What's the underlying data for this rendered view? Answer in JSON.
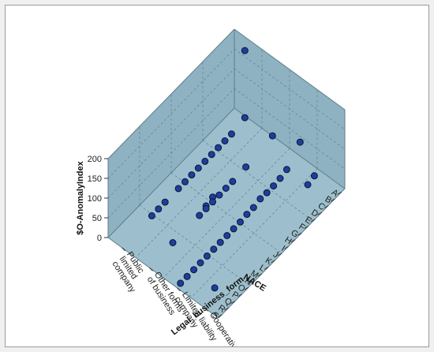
{
  "chart_data": {
    "type": "scatter",
    "title": "",
    "ylabel": "$O-AnomalyIndex",
    "xlabel": "NACE",
    "zlabel": "Legal_business_form",
    "ylim": [
      0,
      200
    ],
    "yticks": [
      "0",
      "50",
      "100",
      "150",
      "200"
    ],
    "x_categories": [
      "A",
      "B",
      "C",
      "D",
      "E",
      "F",
      "G",
      "H",
      "I",
      "J",
      "K",
      "L",
      "M",
      "N",
      "O",
      "P",
      "Q",
      "R",
      "S"
    ],
    "z_categories": [
      "Public limited company",
      "Other forms of business",
      "Limited liability company",
      "Cooperative"
    ],
    "z_tick_lines": [
      [
        "Public",
        "limited",
        "company"
      ],
      [
        "Other forms",
        "of business"
      ],
      [
        "Limited liability",
        "company"
      ],
      [
        "Cooperative"
      ]
    ],
    "points": [
      {
        "x": "A",
        "z": 0,
        "y": 180
      },
      {
        "x": "A",
        "z": 0,
        "y": 10
      },
      {
        "x": "C",
        "z": 0,
        "y": 3
      },
      {
        "x": "D",
        "z": 0,
        "y": 3
      },
      {
        "x": "E",
        "z": 0,
        "y": 3
      },
      {
        "x": "F",
        "z": 0,
        "y": 3
      },
      {
        "x": "G",
        "z": 0,
        "y": 3
      },
      {
        "x": "H",
        "z": 0,
        "y": 3
      },
      {
        "x": "I",
        "z": 0,
        "y": 3
      },
      {
        "x": "J",
        "z": 0,
        "y": 3
      },
      {
        "x": "K",
        "z": 0,
        "y": 3
      },
      {
        "x": "M",
        "z": 0,
        "y": 3
      },
      {
        "x": "N",
        "z": 0,
        "y": 3
      },
      {
        "x": "O",
        "z": 0,
        "y": 3
      },
      {
        "x": "J",
        "z": 1,
        "y": 15
      },
      {
        "x": "K",
        "z": 1,
        "y": 10
      },
      {
        "x": "A",
        "z": 1,
        "y": 15
      },
      {
        "x": "E",
        "z": 1,
        "y": 5
      },
      {
        "x": "G",
        "z": 1,
        "y": 3
      },
      {
        "x": "H",
        "z": 1,
        "y": 3
      },
      {
        "x": "I",
        "z": 1,
        "y": 3
      },
      {
        "x": "J",
        "z": 1,
        "y": 3
      },
      {
        "x": "K",
        "z": 1,
        "y": 3
      },
      {
        "x": "L",
        "z": 1,
        "y": 3
      },
      {
        "x": "P",
        "z": 1,
        "y": 3
      },
      {
        "x": "A",
        "z": 2,
        "y": 50
      },
      {
        "x": "C",
        "z": 2,
        "y": 15
      },
      {
        "x": "D",
        "z": 2,
        "y": 10
      },
      {
        "x": "E",
        "z": 2,
        "y": 8
      },
      {
        "x": "F",
        "z": 2,
        "y": 8
      },
      {
        "x": "G",
        "z": 2,
        "y": 10
      },
      {
        "x": "H",
        "z": 2,
        "y": 5
      },
      {
        "x": "I",
        "z": 2,
        "y": 5
      },
      {
        "x": "J",
        "z": 2,
        "y": 3
      },
      {
        "x": "K",
        "z": 2,
        "y": 3
      },
      {
        "x": "L",
        "z": 2,
        "y": 3
      },
      {
        "x": "M",
        "z": 2,
        "y": 3
      },
      {
        "x": "N",
        "z": 2,
        "y": 3
      },
      {
        "x": "O",
        "z": 2,
        "y": 3
      },
      {
        "x": "P",
        "z": 2,
        "y": 3
      },
      {
        "x": "Q",
        "z": 2,
        "y": 3
      },
      {
        "x": "R",
        "z": 2,
        "y": 3
      },
      {
        "x": "S",
        "z": 2,
        "y": 3
      },
      {
        "x": "C",
        "z": 3,
        "y": 50
      },
      {
        "x": "D",
        "z": 3,
        "y": 45
      },
      {
        "x": "R",
        "z": 3,
        "y": 25
      }
    ],
    "grid": true,
    "colors": {
      "wall": "#8fb2c2",
      "floor": "#9dbfcd",
      "frame_line": "#5d7c8a",
      "grid_line": "#5f7e8c",
      "point_fill": "#1f3d9a",
      "point_stroke": "#0b153c"
    }
  }
}
